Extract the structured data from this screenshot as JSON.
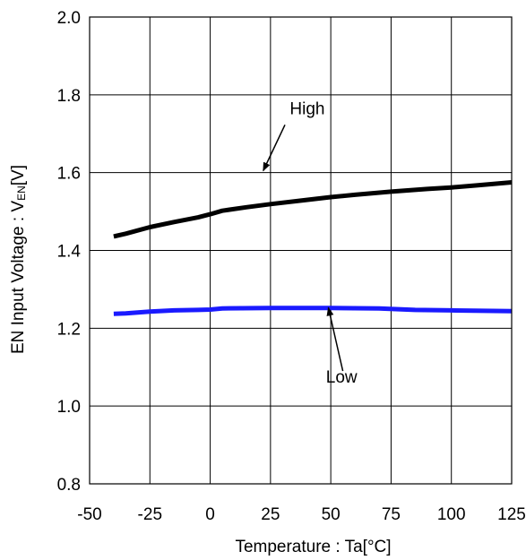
{
  "chart_data": {
    "type": "line",
    "title": "",
    "xlabel": "Temperature : Ta[°C]",
    "ylabel_main": "EN Input Voltage : V",
    "ylabel_sub": "EN",
    "ylabel_unit": "[V]",
    "xlim": [
      -50,
      125
    ],
    "ylim": [
      0.8,
      2.0
    ],
    "x_ticks": [
      -50,
      -25,
      0,
      25,
      50,
      75,
      100,
      125
    ],
    "y_ticks": [
      0.8,
      1.0,
      1.2,
      1.4,
      1.6,
      1.8,
      2.0
    ],
    "y_tick_labels": [
      "0.8",
      "1.0",
      "1.2",
      "1.4",
      "1.6",
      "1.8",
      "2.0"
    ],
    "grid": true,
    "legend": "none",
    "series": [
      {
        "color": "#000000",
        "x": [
          -40,
          -35,
          -25,
          -15,
          -5,
          0,
          5,
          15,
          25,
          40,
          50,
          60,
          75,
          90,
          100,
          110,
          125
        ],
        "values": [
          1.436,
          1.443,
          1.46,
          1.473,
          1.485,
          1.493,
          1.502,
          1.511,
          1.519,
          1.53,
          1.537,
          1.543,
          1.551,
          1.558,
          1.562,
          1.567,
          1.575
        ]
      },
      {
        "color": "#1a1aff",
        "x": [
          -40,
          -35,
          -25,
          -15,
          -5,
          0,
          5,
          25,
          50,
          70,
          85,
          100,
          125
        ],
        "values": [
          1.237,
          1.238,
          1.243,
          1.246,
          1.247,
          1.248,
          1.251,
          1.252,
          1.252,
          1.251,
          1.247,
          1.246,
          1.244
        ]
      }
    ],
    "annotations": [
      {
        "text": "High",
        "text_x": 33,
        "text_y": 1.75,
        "arrow_from": [
          31,
          1.723
        ],
        "arrow_to": [
          22,
          1.605
        ]
      },
      {
        "text": "Low",
        "text_x": 48,
        "text_y": 1.06,
        "arrow_from": [
          55,
          1.09
        ],
        "arrow_to": [
          49,
          1.253
        ]
      }
    ]
  }
}
